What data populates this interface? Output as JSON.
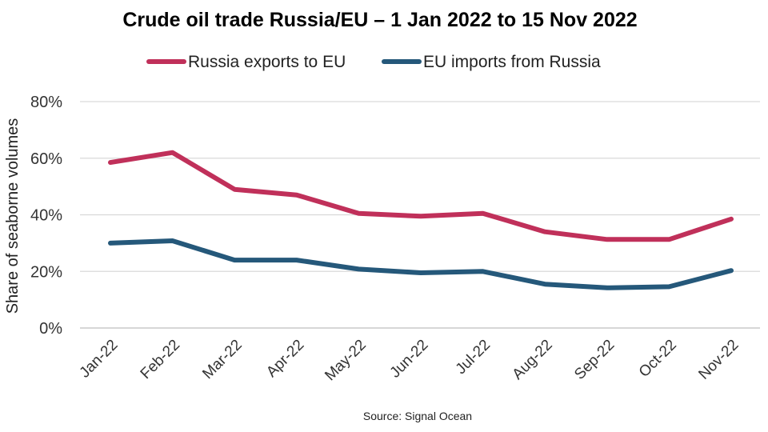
{
  "chart_data": {
    "type": "line",
    "title": "Crude oil trade Russia/EU – 1 Jan 2022 to 15 Nov 2022",
    "ylabel": "Share of seaborne volumes",
    "xlabel": "",
    "source": "Source: Signal Ocean",
    "categories": [
      "Jan-22",
      "Feb-22",
      "Mar-22",
      "Apr-22",
      "May-22",
      "Jun-22",
      "Jul-22",
      "Aug-22",
      "Sep-22",
      "Oct-22",
      "Nov-22"
    ],
    "ylim": [
      0,
      80
    ],
    "yticks": [
      0,
      20,
      40,
      60,
      80
    ],
    "ytick_labels": [
      "0%",
      "20%",
      "40%",
      "60%",
      "80%"
    ],
    "grid": true,
    "legend_position": "top",
    "series": [
      {
        "name": "Russia exports to EU",
        "color": "#c0305a",
        "values": [
          58.5,
          62,
          49,
          47,
          40.5,
          39.5,
          40.5,
          34,
          31.3,
          31.3,
          38.5
        ]
      },
      {
        "name": "EU imports from Russia",
        "color": "#25587a",
        "values": [
          30,
          30.8,
          24,
          24,
          20.8,
          19.5,
          20,
          15.5,
          14.2,
          14.6,
          20.3
        ]
      }
    ]
  }
}
